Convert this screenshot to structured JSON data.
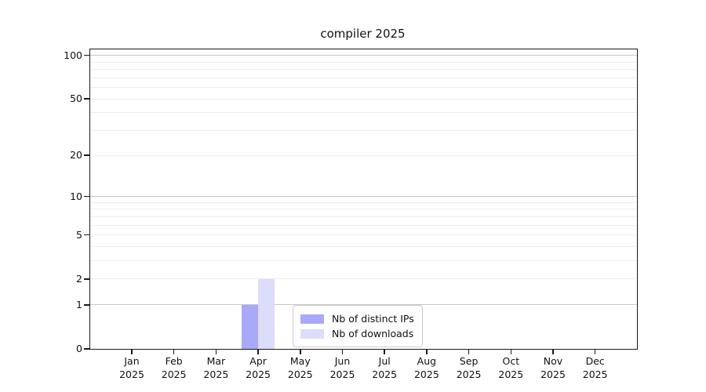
{
  "chart_data": {
    "type": "bar",
    "title": "compiler 2025",
    "categories": [
      "Jan",
      "Feb",
      "Mar",
      "Apr",
      "May",
      "Jun",
      "Jul",
      "Aug",
      "Sep",
      "Oct",
      "Nov",
      "Dec"
    ],
    "year": "2025",
    "series": [
      {
        "name": "Nb of distinct IPs",
        "color": "#a9a9f9",
        "values": [
          0,
          0,
          0,
          1,
          0,
          0,
          0,
          0,
          0,
          0,
          0,
          0
        ]
      },
      {
        "name": "Nb of downloads",
        "color": "#dcdcfb",
        "values": [
          0,
          0,
          0,
          2,
          0,
          0,
          0,
          0,
          0,
          0,
          0,
          0
        ]
      }
    ],
    "yscale": "log1p",
    "ylim": [
      0,
      110
    ],
    "yticks": [
      0,
      1,
      2,
      5,
      10,
      20,
      50,
      100
    ],
    "major_gridlines": [
      1,
      10,
      100
    ],
    "minor_gridlines": [
      2,
      3,
      4,
      5,
      6,
      7,
      8,
      9,
      20,
      30,
      40,
      50,
      60,
      70,
      80,
      90
    ],
    "xlabel": "",
    "ylabel": "",
    "grid": true,
    "legend": {
      "position": "lower center",
      "entries": [
        "Nb of distinct IPs",
        "Nb of downloads"
      ]
    }
  }
}
